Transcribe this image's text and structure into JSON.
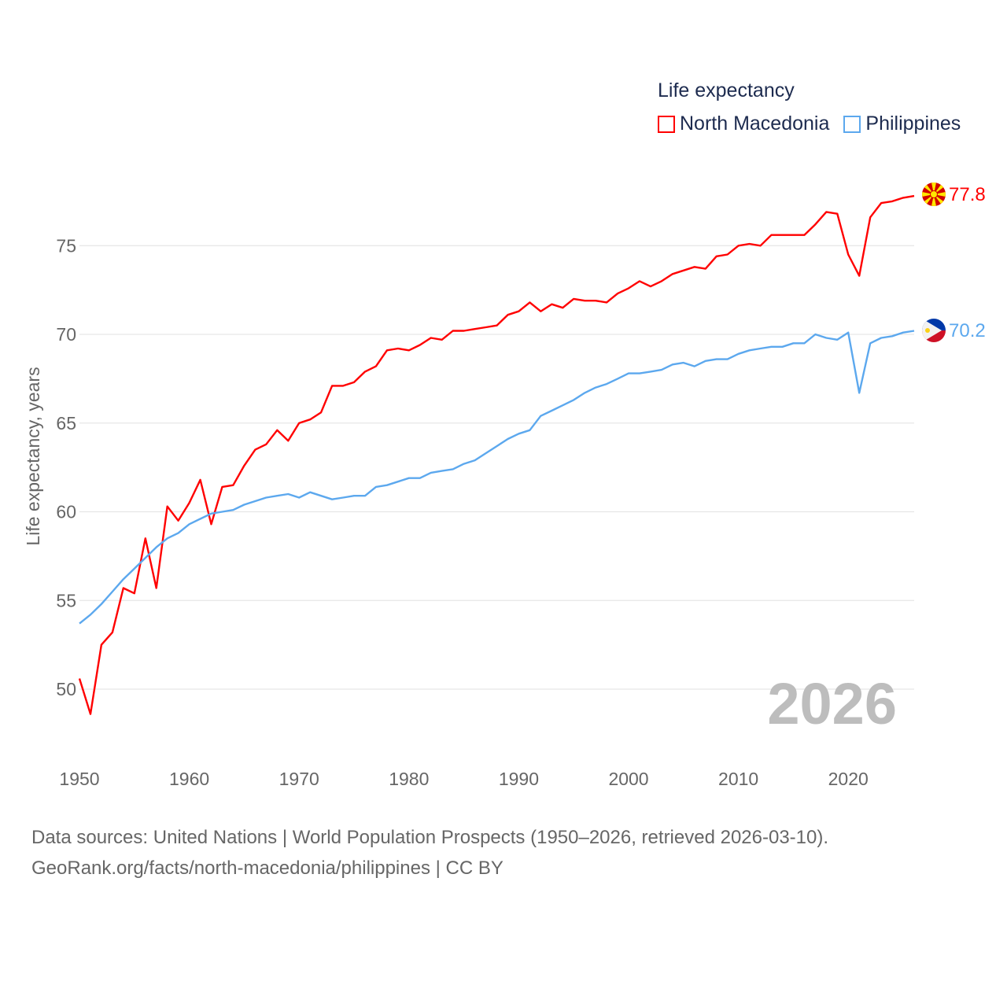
{
  "chart_data": {
    "type": "line",
    "title": "Life expectancy",
    "xlabel": "",
    "ylabel": "Life expectancy, years",
    "xlim": [
      1950,
      2026
    ],
    "ylim": [
      46.5,
      79.5
    ],
    "yticks": [
      50,
      55,
      60,
      65,
      70,
      75
    ],
    "xticks": [
      1950,
      1960,
      1970,
      1980,
      1990,
      2000,
      2010,
      2020
    ],
    "grid": true,
    "legend_position": "top-right",
    "year_label": "2026",
    "x_start": 1950,
    "series": [
      {
        "name": "North Macedonia",
        "color": "#ff0000",
        "end_label": "77.8",
        "values": [
          50.6,
          48.6,
          52.5,
          53.2,
          55.7,
          55.4,
          58.5,
          55.7,
          60.3,
          59.5,
          60.5,
          61.8,
          59.3,
          61.4,
          61.5,
          62.6,
          63.5,
          63.8,
          64.6,
          64.0,
          65.0,
          65.2,
          65.6,
          67.1,
          67.1,
          67.3,
          67.9,
          68.2,
          69.1,
          69.2,
          69.1,
          69.4,
          69.8,
          69.7,
          70.2,
          70.2,
          70.3,
          70.4,
          70.5,
          71.1,
          71.3,
          71.8,
          71.3,
          71.7,
          71.5,
          72.0,
          71.9,
          71.9,
          71.8,
          72.3,
          72.6,
          73.0,
          72.7,
          73.0,
          73.4,
          73.6,
          73.8,
          73.7,
          74.4,
          74.5,
          75.0,
          75.1,
          75.0,
          75.6,
          75.6,
          75.6,
          75.6,
          76.2,
          76.9,
          76.8,
          74.5,
          73.3,
          76.6,
          77.4,
          77.5,
          77.7,
          77.8
        ]
      },
      {
        "name": "Philippines",
        "color": "#5ca8ee",
        "end_label": "70.2",
        "values": [
          53.7,
          54.2,
          54.8,
          55.5,
          56.2,
          56.8,
          57.4,
          58.0,
          58.5,
          58.8,
          59.3,
          59.6,
          59.9,
          60.0,
          60.1,
          60.4,
          60.6,
          60.8,
          60.9,
          61.0,
          60.8,
          61.1,
          60.9,
          60.7,
          60.8,
          60.9,
          60.9,
          61.4,
          61.5,
          61.7,
          61.9,
          61.9,
          62.2,
          62.3,
          62.4,
          62.7,
          62.9,
          63.3,
          63.7,
          64.1,
          64.4,
          64.6,
          65.4,
          65.7,
          66.0,
          66.3,
          66.7,
          67.0,
          67.2,
          67.5,
          67.8,
          67.8,
          67.9,
          68.0,
          68.3,
          68.4,
          68.2,
          68.5,
          68.6,
          68.6,
          68.9,
          69.1,
          69.2,
          69.3,
          69.3,
          69.5,
          69.5,
          70.0,
          69.8,
          69.7,
          70.1,
          66.7,
          69.5,
          69.8,
          69.9,
          70.1,
          70.2
        ]
      }
    ]
  },
  "footer": {
    "line1": "Data sources: United Nations | World Population Prospects (1950–2026, retrieved 2026-03-10).",
    "line2": "GeoRank.org/facts/north-macedonia/philippines | CC BY"
  }
}
